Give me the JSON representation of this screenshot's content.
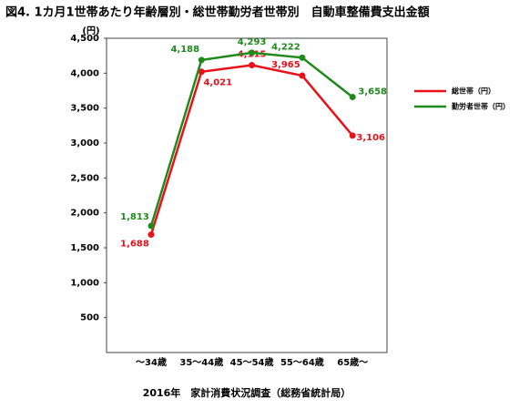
{
  "chart_data": {
    "type": "line",
    "title": "図4.  1カ月1世帯あたり年齢層別・総世帯勤労者世帯別　自動車整備費支出金額",
    "y_label": "(円)",
    "footer": "2016年　家計消費状況調査（総務省統計局）",
    "categories": [
      "～34歳",
      "35～44歳",
      "45～54歳",
      "55～64歳",
      "65歳～"
    ],
    "series": [
      {
        "name": "総世帯（円）",
        "color": "#e8111a",
        "values": [
          1688,
          4021,
          4115,
          3965,
          3106
        ],
        "value_labels": [
          "1,688",
          "4,021",
          "4,115",
          "3,965",
          "3,106"
        ]
      },
      {
        "name": "勤労者世帯（円）",
        "color": "#1f8a1c",
        "values": [
          1813,
          4188,
          4293,
          4222,
          3658
        ],
        "value_labels": [
          "1,813",
          "4,188",
          "4,293",
          "4,222",
          "3,658"
        ]
      }
    ],
    "ylim": [
      0,
      4500
    ],
    "yticks": [
      500,
      {
        "value": 1000,
        "label": "1,000"
      },
      {
        "value": 1500,
        "label": "1,500"
      },
      {
        "value": 2000,
        "label": "2,000"
      },
      {
        "value": 2500,
        "label": "2,500"
      },
      {
        "value": 3000,
        "label": "3,000"
      },
      {
        "value": 3500,
        "label": "3,500"
      },
      {
        "value": 4000,
        "label": "4,000"
      },
      {
        "value": 4500,
        "label": "4,500"
      }
    ],
    "legend": "right"
  }
}
